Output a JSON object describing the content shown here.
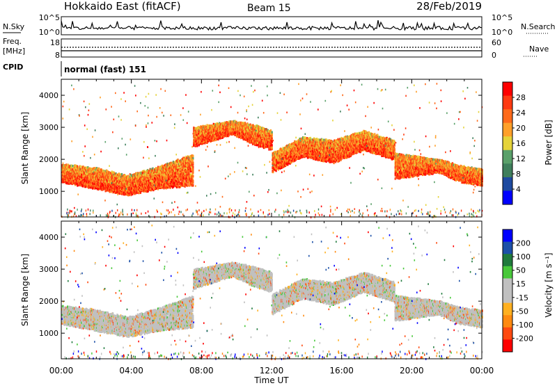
{
  "header": {
    "station": "Hokkaido East (fitACF)",
    "beam": "Beam 15",
    "date": "28/Feb/2019"
  },
  "top_panels": {
    "nsky_label": "N.Sky",
    "nsearch_label": "N.Search",
    "freq_label_1": "Freq.",
    "freq_label_2": "[MHz]",
    "nave_label": "Nave",
    "cpid_label": "CPID",
    "cpid_value": "normal (fast) 151",
    "left_ticks_noise": [
      "10^5",
      "10^0"
    ],
    "right_ticks_noise": [
      "10^5",
      "10^0"
    ],
    "left_ticks_freq": [
      "18",
      "8"
    ],
    "right_ticks_nave": [
      "60",
      "0"
    ]
  },
  "colors": {
    "power": [
      "#0000ff",
      "#1e4aa0",
      "#3f7f5c",
      "#5aa06a",
      "#e5d33a",
      "#ffa02a",
      "#ff6a1a",
      "#ff3a12",
      "#ff0000"
    ],
    "velocity": [
      "#0000ff",
      "#1c50a8",
      "#1f7a3c",
      "#48c83a",
      "#c0c0c0",
      "#c0c0c0",
      "#ffb020",
      "#ff8a10",
      "#ff4a10",
      "#ff0000"
    ]
  },
  "chart_data": [
    {
      "type": "heatmap",
      "name": "power",
      "ylabel": "Slant Range [km]",
      "xlabel": "",
      "x_ticks": [
        "00:00",
        "04:00",
        "08:00",
        "12:00",
        "16:00",
        "20:00",
        "00:00"
      ],
      "y_ticks": [
        "1000",
        "2000",
        "3000",
        "4000"
      ],
      "ylim": [
        200,
        4500
      ],
      "colorbar_label": "Power [dB]",
      "colorbar_ticks": [
        "4",
        "8",
        "12",
        "16",
        "20",
        "24",
        "28"
      ],
      "colorbar_range": [
        0,
        30
      ],
      "bands": [
        {
          "t0": 0,
          "t1": 7.5,
          "r0": [
            1300,
            1100,
            900,
            1100,
            1200
          ],
          "r1": [
            1850,
            1750,
            1500,
            1800,
            2200
          ],
          "v": 28
        },
        {
          "t0": 7.5,
          "t1": 12,
          "r0": [
            2400,
            2600,
            2800,
            2500,
            2300
          ],
          "r1": [
            3000,
            3100,
            3200,
            3100,
            2900
          ],
          "v": 24
        },
        {
          "t0": 12,
          "t1": 19,
          "r0": [
            1600,
            2100,
            1900,
            2300,
            2000
          ],
          "r1": [
            2200,
            2700,
            2600,
            2900,
            2600
          ],
          "v": 26
        },
        {
          "t0": 19,
          "t1": 24,
          "r0": [
            1400,
            1500,
            1600,
            1300,
            1200
          ],
          "r1": [
            2200,
            2100,
            2000,
            1800,
            1700
          ],
          "v": 27
        }
      ]
    },
    {
      "type": "heatmap",
      "name": "velocity",
      "ylabel": "Slant Range [km]",
      "xlabel": "Time UT",
      "x_ticks": [
        "00:00",
        "04:00",
        "08:00",
        "12:00",
        "16:00",
        "20:00",
        "00:00"
      ],
      "y_ticks": [
        "1000",
        "2000",
        "3000",
        "4000"
      ],
      "ylim": [
        200,
        4500
      ],
      "colorbar_label": "Velocity [m s⁻¹]",
      "colorbar_ticks": [
        "200",
        "100",
        "50",
        "15",
        "-15",
        "-50",
        "-100",
        "-200"
      ],
      "colorbar_range": [
        -250,
        250
      ]
    }
  ]
}
